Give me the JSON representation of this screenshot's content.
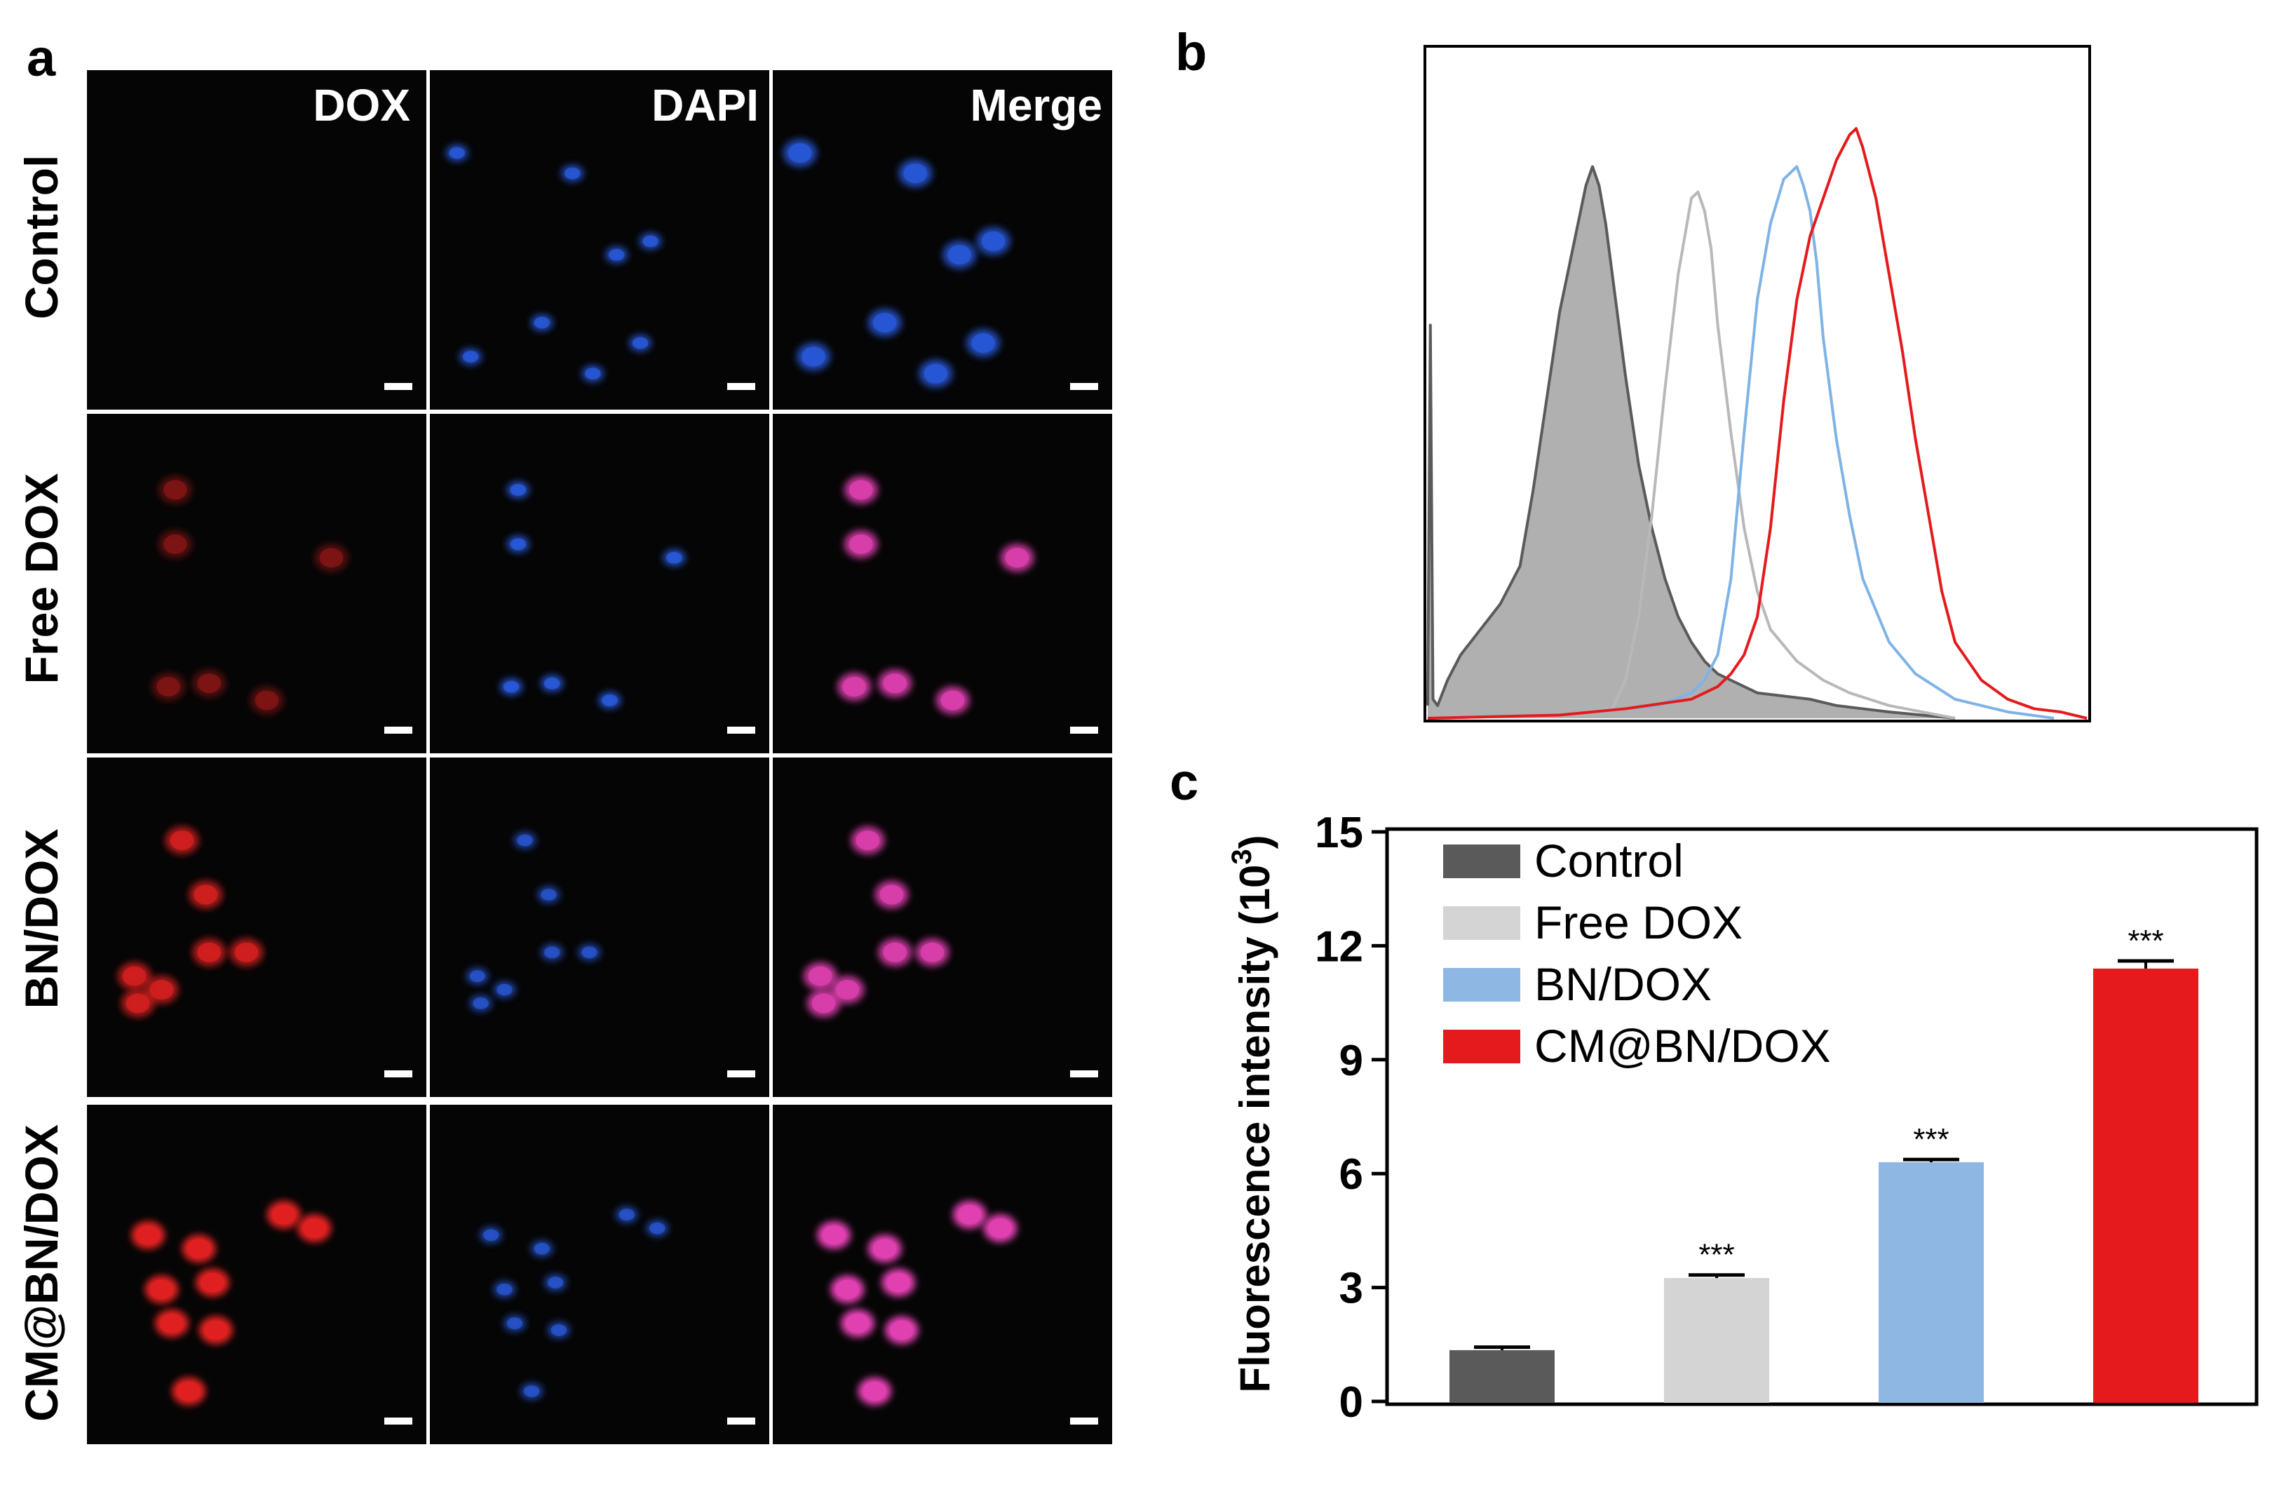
{
  "panel_letters": {
    "a": "a",
    "b": "b",
    "c": "c"
  },
  "panel_a": {
    "columns": [
      "DOX",
      "DAPI",
      "Merge"
    ],
    "rows": [
      "Control",
      "Free DOX",
      "BN/DOX",
      "CM@BN/DOX"
    ]
  },
  "colors": {
    "control": "#5a5a5a",
    "free_dox": "#d4d4d4",
    "bn_dox": "#8fb7e3",
    "cm_bn_dox": "#e41a1c",
    "dox_channel": "#e02020",
    "dapi_channel": "#2a5ce0",
    "merge_channel": "#e040b0"
  },
  "chart_data": [
    {
      "panel": "b",
      "type": "area",
      "title": "",
      "xlabel": "",
      "ylabel": "",
      "x_range": [
        0,
        100
      ],
      "y_range": [
        0,
        100
      ],
      "series": [
        {
          "name": "Control",
          "color": "#5a5a5a",
          "fill": "#b0b0b0",
          "x": [
            0,
            0.4,
            0.8,
            1.5,
            3,
            5,
            8,
            11,
            14,
            16,
            18,
            20,
            22,
            24,
            25,
            26,
            27,
            28,
            30,
            32,
            34,
            36,
            38,
            40,
            42,
            44,
            46,
            48,
            50,
            54,
            58,
            62,
            66,
            70,
            80
          ],
          "y": [
            2,
            62,
            3,
            2,
            6,
            10,
            14,
            18,
            24,
            36,
            50,
            64,
            74,
            84,
            87,
            84,
            78,
            70,
            54,
            40,
            30,
            22,
            16,
            12,
            9,
            7,
            6,
            5,
            4,
            3.5,
            3,
            2,
            1.5,
            1,
            0
          ]
        },
        {
          "name": "Free DOX",
          "color": "#b8b8b8",
          "x": [
            0,
            20,
            28,
            30,
            32,
            34,
            36,
            38,
            40,
            41,
            42,
            43,
            44,
            46,
            48,
            50,
            52,
            56,
            60,
            64,
            70,
            80
          ],
          "y": [
            0,
            0.5,
            1.5,
            6,
            16,
            32,
            52,
            70,
            82,
            83,
            80,
            74,
            62,
            45,
            30,
            20,
            14,
            9,
            6,
            4,
            2,
            0
          ]
        },
        {
          "name": "BN/DOX",
          "color": "#7fb3e6",
          "x": [
            0,
            20,
            35,
            40,
            42,
            44,
            46,
            48,
            50,
            52,
            54,
            56,
            57,
            58,
            59,
            60,
            62,
            64,
            66,
            70,
            74,
            80,
            88,
            95
          ],
          "y": [
            0,
            0.5,
            2,
            4,
            6,
            10,
            22,
            45,
            66,
            78,
            85,
            87,
            84,
            80,
            72,
            60,
            44,
            32,
            22,
            12,
            7,
            3,
            1,
            0
          ]
        },
        {
          "name": "CM@BN/DOX",
          "color": "#e41a1c",
          "x": [
            0,
            20,
            30,
            40,
            44,
            46,
            48,
            50,
            52,
            54,
            56,
            58,
            60,
            62,
            64,
            65,
            66,
            68,
            70,
            72,
            74,
            76,
            78,
            80,
            84,
            88,
            92,
            96,
            100
          ],
          "y": [
            0,
            0.5,
            1.5,
            3,
            5,
            7,
            10,
            16,
            30,
            50,
            66,
            76,
            82,
            88,
            92,
            93,
            90,
            82,
            70,
            58,
            44,
            32,
            20,
            12,
            6,
            3,
            1.5,
            1,
            0
          ]
        }
      ]
    },
    {
      "panel": "c",
      "type": "bar",
      "title": "",
      "xlabel": "",
      "ylabel": "Fluorescence intensity",
      "ylabel_unit_base": "(10",
      "ylabel_unit_exp": "3",
      "ylabel_unit_close": ")",
      "ylim": [
        0,
        15
      ],
      "yticks": [
        "0",
        "3",
        "6",
        "9",
        "12",
        "15"
      ],
      "categories": [
        "Control",
        "Free DOX",
        "BN/DOX",
        "CM@BN/DOX"
      ],
      "values": [
        1.35,
        3.25,
        6.3,
        11.4
      ],
      "errors": [
        0.08,
        0.08,
        0.07,
        0.2
      ],
      "significance": [
        "",
        "***",
        "***",
        "***"
      ],
      "legend": [
        "Control",
        "Free DOX",
        "BN/DOX",
        "CM@BN/DOX"
      ],
      "legend_position": "top-left"
    }
  ]
}
